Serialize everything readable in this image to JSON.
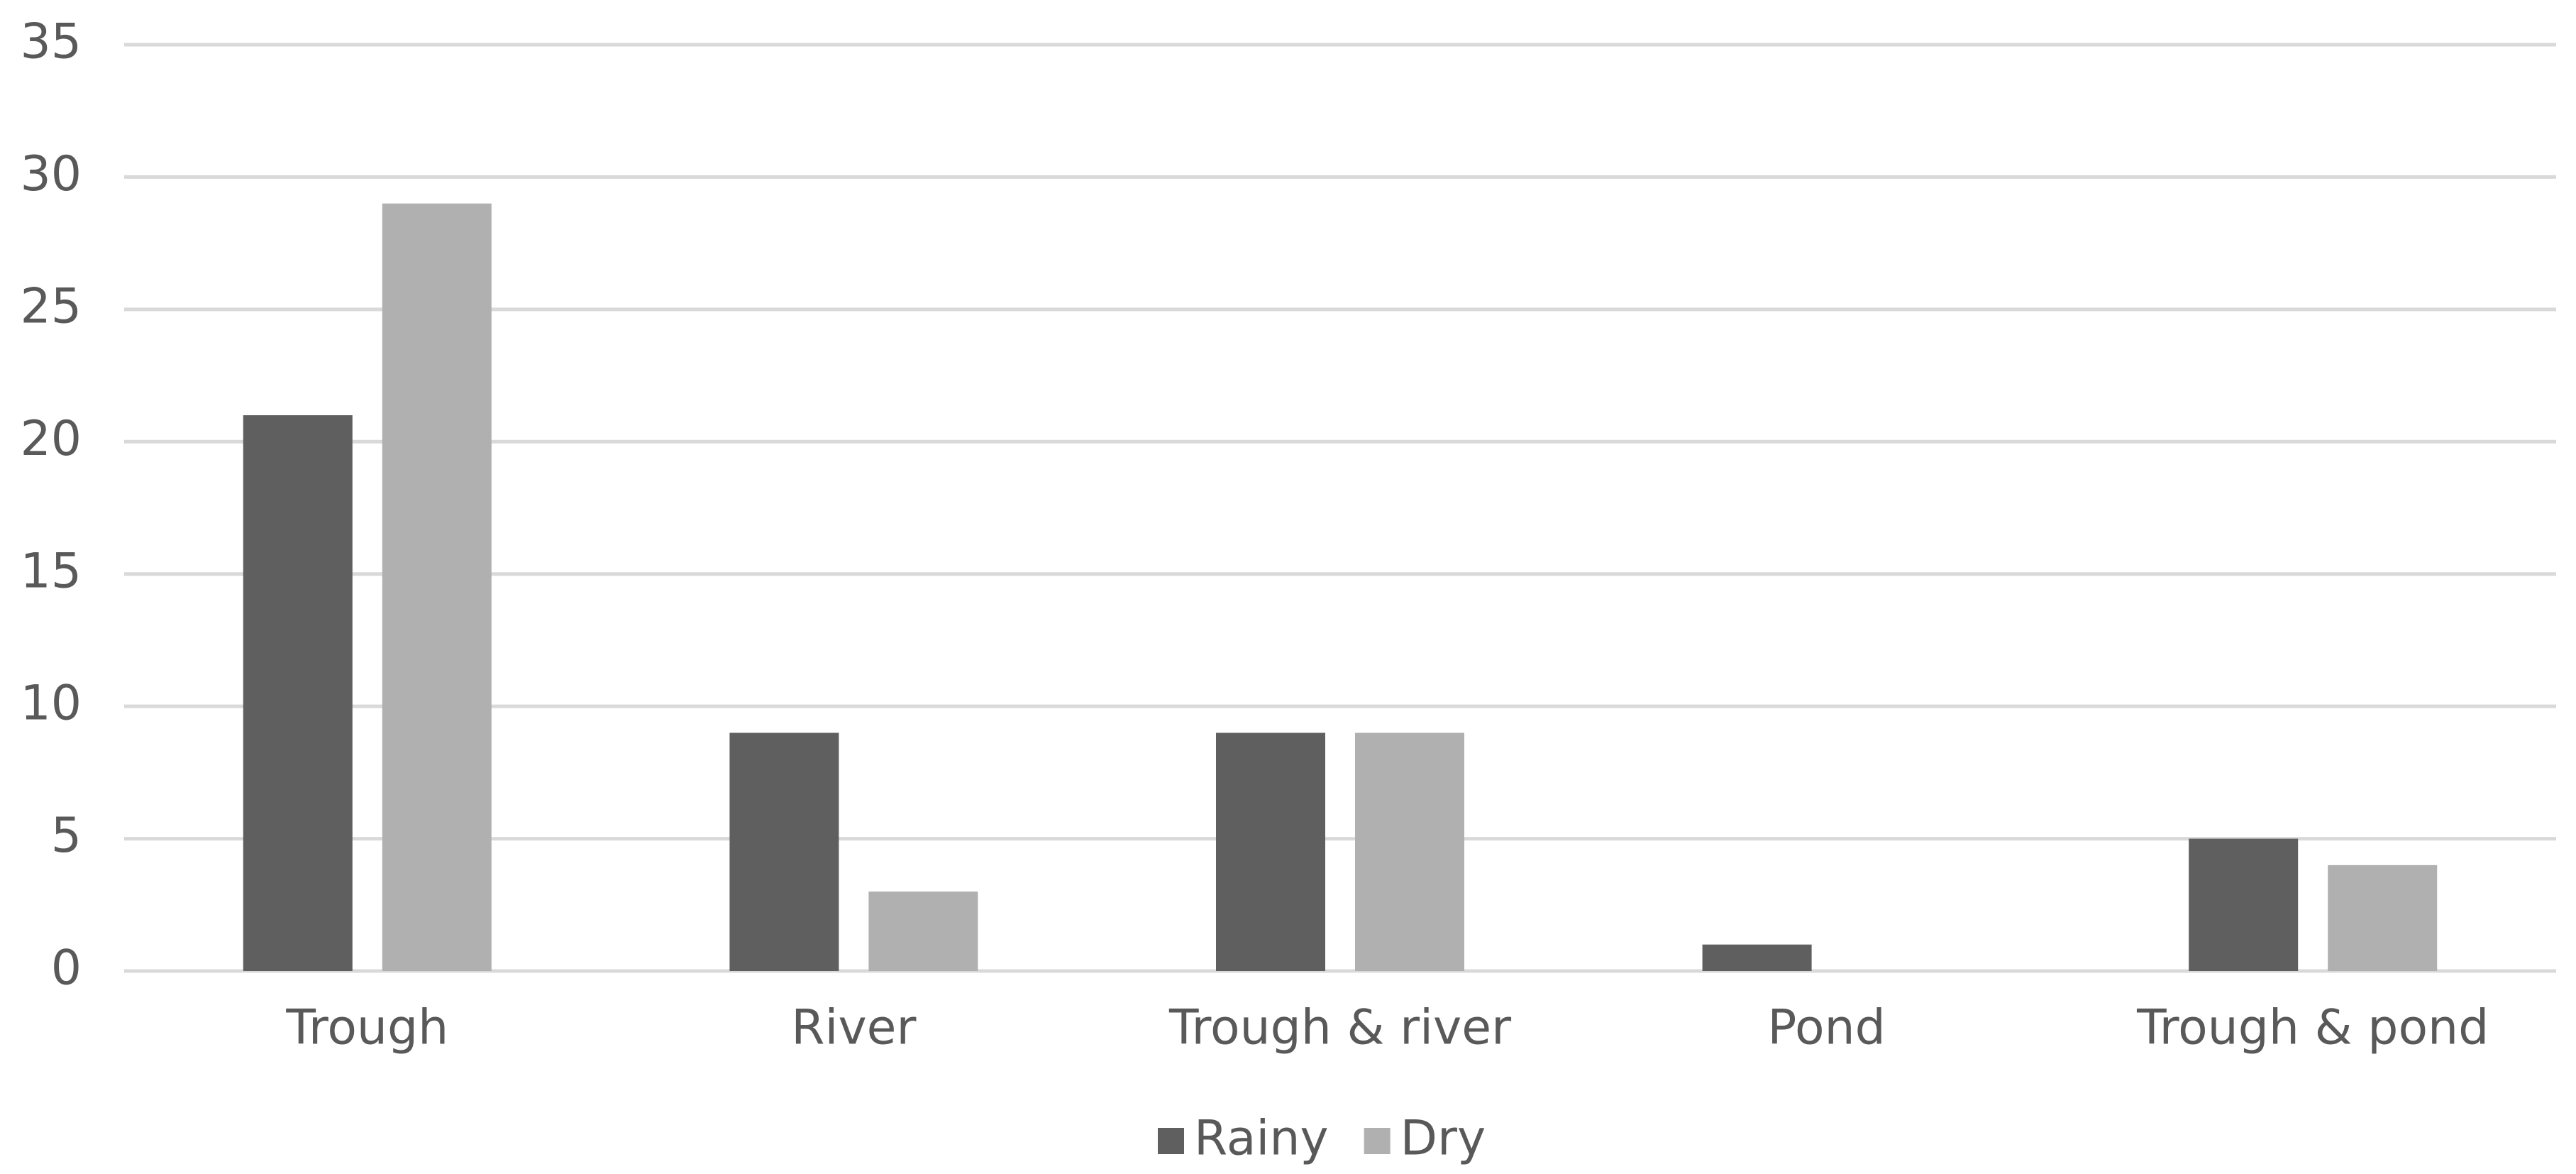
{
  "chart_data": {
    "type": "bar",
    "categories": [
      "Trough",
      "River",
      "Trough & river",
      "Pond",
      "Trough & pond"
    ],
    "series": [
      {
        "name": "Rainy",
        "color": "#5f5f5f",
        "values": [
          21,
          9,
          9,
          1,
          5
        ]
      },
      {
        "name": "Dry",
        "color": "#b0b0b0",
        "values": [
          29,
          3,
          9,
          0,
          4
        ]
      }
    ],
    "ylim": [
      0,
      35
    ],
    "yticks": [
      0,
      5,
      10,
      15,
      20,
      25,
      30,
      35
    ],
    "grid": true,
    "legend": "bottom"
  }
}
